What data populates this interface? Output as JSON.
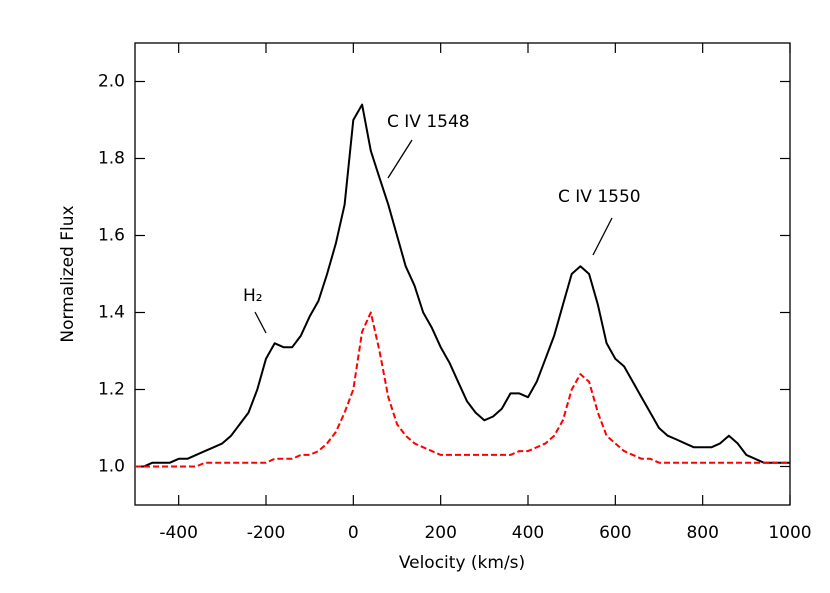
{
  "chart_data": {
    "type": "line",
    "xlabel": "Velocity (km/s)",
    "ylabel": "Normalized Flux",
    "annotations": [
      "C IV 1548",
      "C IV 1550",
      "H₂"
    ],
    "x": [
      -500,
      -480,
      -460,
      -440,
      -420,
      -400,
      -380,
      -360,
      -340,
      -320,
      -300,
      -280,
      -260,
      -240,
      -220,
      -200,
      -180,
      -160,
      -140,
      -120,
      -100,
      -80,
      -60,
      -40,
      -20,
      0,
      20,
      40,
      60,
      80,
      100,
      120,
      140,
      160,
      180,
      200,
      220,
      240,
      260,
      280,
      300,
      320,
      340,
      360,
      380,
      400,
      420,
      440,
      460,
      480,
      500,
      520,
      540,
      560,
      580,
      600,
      620,
      640,
      660,
      680,
      700,
      720,
      740,
      760,
      780,
      800,
      820,
      840,
      860,
      880,
      900,
      920,
      940,
      960,
      980,
      1000
    ],
    "series": [
      {
        "color": "#000000",
        "dashed": false,
        "values": [
          1.0,
          1.0,
          1.01,
          1.01,
          1.01,
          1.02,
          1.02,
          1.03,
          1.04,
          1.05,
          1.06,
          1.08,
          1.11,
          1.14,
          1.2,
          1.28,
          1.32,
          1.31,
          1.31,
          1.34,
          1.39,
          1.43,
          1.5,
          1.58,
          1.68,
          1.9,
          1.94,
          1.82,
          1.75,
          1.68,
          1.6,
          1.52,
          1.47,
          1.4,
          1.36,
          1.31,
          1.27,
          1.22,
          1.17,
          1.14,
          1.12,
          1.13,
          1.15,
          1.19,
          1.19,
          1.18,
          1.22,
          1.28,
          1.34,
          1.42,
          1.5,
          1.52,
          1.5,
          1.42,
          1.32,
          1.28,
          1.26,
          1.22,
          1.18,
          1.14,
          1.1,
          1.08,
          1.07,
          1.06,
          1.05,
          1.05,
          1.05,
          1.06,
          1.08,
          1.06,
          1.03,
          1.02,
          1.01,
          1.01,
          1.01,
          1.01
        ]
      },
      {
        "color": "#ff0000",
        "dashed": true,
        "values": [
          1.0,
          1.0,
          1.0,
          1.0,
          1.0,
          1.0,
          1.0,
          1.0,
          1.01,
          1.01,
          1.01,
          1.01,
          1.01,
          1.01,
          1.01,
          1.01,
          1.02,
          1.02,
          1.02,
          1.03,
          1.03,
          1.04,
          1.06,
          1.09,
          1.14,
          1.2,
          1.35,
          1.4,
          1.3,
          1.18,
          1.11,
          1.08,
          1.06,
          1.05,
          1.04,
          1.03,
          1.03,
          1.03,
          1.03,
          1.03,
          1.03,
          1.03,
          1.03,
          1.03,
          1.04,
          1.04,
          1.05,
          1.06,
          1.08,
          1.12,
          1.2,
          1.24,
          1.22,
          1.14,
          1.08,
          1.06,
          1.04,
          1.03,
          1.02,
          1.02,
          1.01,
          1.01,
          1.01,
          1.01,
          1.01,
          1.01,
          1.01,
          1.01,
          1.01,
          1.01,
          1.01,
          1.01,
          1.01,
          1.01,
          1.01,
          1.01
        ]
      }
    ],
    "xlim": [
      -500,
      1000
    ],
    "xticks": [
      -400,
      -200,
      0,
      200,
      400,
      600,
      800,
      1000
    ],
    "ylim": [
      0.9,
      2.1
    ],
    "yticks": [
      {
        "value": 1,
        "label": "1.0"
      },
      1.2,
      1.4,
      1.6,
      1.8,
      {
        "value": 2,
        "label": "2.0"
      }
    ]
  }
}
